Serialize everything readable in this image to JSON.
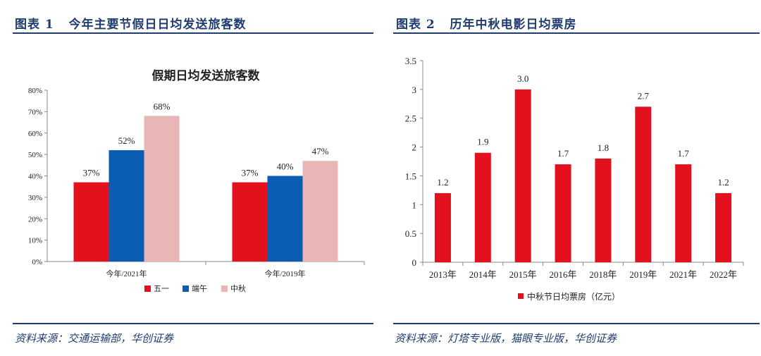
{
  "figure1": {
    "label": "图表 1",
    "title": "今年主要节假日日均发送旅客数",
    "source": "资料来源：交通运输部，华创证券"
  },
  "figure2": {
    "label": "图表 2",
    "title": "历年中秋电影日均票房",
    "source": "资料来源：灯塔专业版，猫眼专业版，华创证券"
  },
  "colors": {
    "red": "#e3101d",
    "blue": "#0b5cb3",
    "pink": "#e8b6b6",
    "navy": "#1f3d6e"
  },
  "chart_data": [
    {
      "type": "bar",
      "title": "假期日均发送旅客数",
      "categories": [
        "今年/2021年",
        "今年/2019年"
      ],
      "series": [
        {
          "name": "五一",
          "values": [
            37,
            37
          ],
          "labels": [
            "37%",
            "37%"
          ],
          "color": "#e3101d"
        },
        {
          "name": "端午",
          "values": [
            52,
            40
          ],
          "labels": [
            "52%",
            "40%"
          ],
          "color": "#0b5cb3"
        },
        {
          "name": "中秋",
          "values": [
            68,
            47
          ],
          "labels": [
            "68%",
            "47%"
          ],
          "color": "#e8b6b6"
        }
      ],
      "ylim": [
        0,
        80
      ],
      "yticks": [
        "0%",
        "10%",
        "20%",
        "30%",
        "40%",
        "50%",
        "60%",
        "70%",
        "80%"
      ],
      "legend_position": "bottom",
      "xlabel": "",
      "ylabel": ""
    },
    {
      "type": "bar",
      "title": "",
      "categories": [
        "2013年",
        "2014年",
        "2015年",
        "2016年",
        "2018年",
        "2019年",
        "2021年",
        "2022年"
      ],
      "series": [
        {
          "name": "中秋节日均票房（亿元）",
          "values": [
            1.2,
            1.9,
            3.0,
            1.7,
            1.8,
            2.7,
            1.7,
            1.2
          ],
          "labels": [
            "1.2",
            "1.9",
            "3.0",
            "1.7",
            "1.8",
            "2.7",
            "1.7",
            "1.2"
          ],
          "color": "#e3101d"
        }
      ],
      "ylim": [
        0,
        3.5
      ],
      "yticks": [
        "0",
        "0.5",
        "1",
        "1.5",
        "2",
        "2.5",
        "3",
        "3.5"
      ],
      "legend_position": "bottom",
      "xlabel": "",
      "ylabel": ""
    }
  ]
}
